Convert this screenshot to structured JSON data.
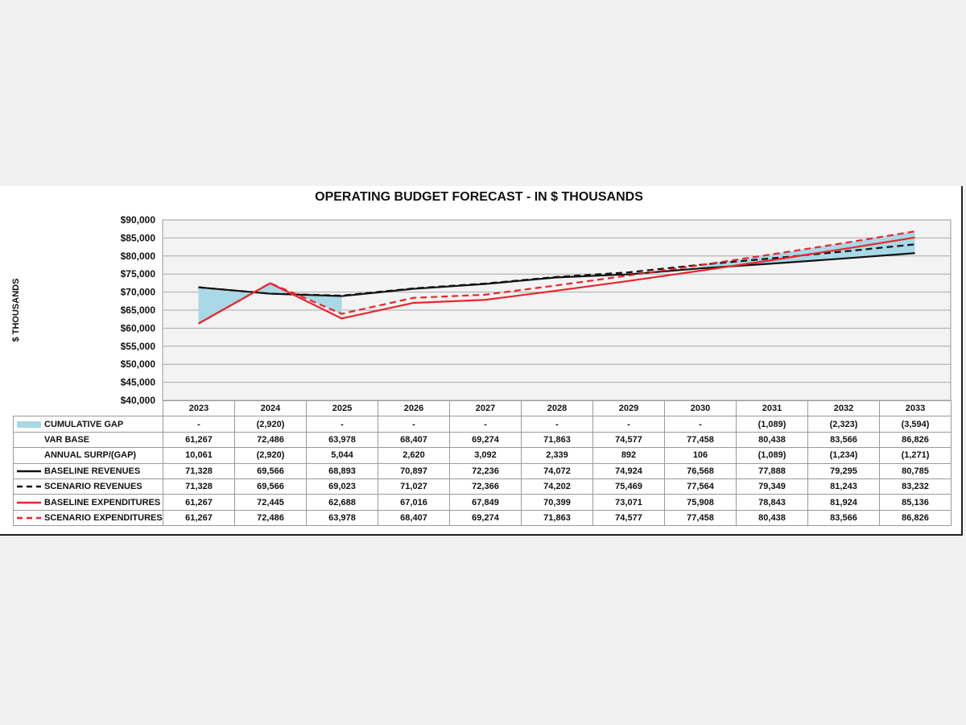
{
  "chart_data": {
    "type": "line",
    "title": "OPERATING BUDGET FORECAST - IN $ THOUSANDS",
    "ylabel": "$ THOUSANDS",
    "ylim": [
      40000,
      90000
    ],
    "yticks": [
      "$40,000",
      "$45,000",
      "$50,000",
      "$55,000",
      "$60,000",
      "$65,000",
      "$70,000",
      "$75,000",
      "$80,000",
      "$85,000",
      "$90,000"
    ],
    "years": [
      "2023",
      "2024",
      "2025",
      "2026",
      "2027",
      "2028",
      "2029",
      "2030",
      "2031",
      "2032",
      "2033"
    ],
    "grid": true,
    "series": [
      {
        "name": "BASELINE REVENUES",
        "color": "#111111",
        "style": "solid",
        "values": [
          71328,
          69566,
          68893,
          70897,
          72236,
          74072,
          74924,
          76568,
          77888,
          79295,
          80785
        ]
      },
      {
        "name": "SCENARIO REVENUES",
        "color": "#111111",
        "style": "dashed",
        "values": [
          71328,
          69566,
          69023,
          71027,
          72366,
          74202,
          75469,
          77564,
          79349,
          81243,
          83232
        ]
      },
      {
        "name": "BASELINE EXPENDITURES",
        "color": "#e8262b",
        "style": "solid",
        "values": [
          61267,
          72445,
          62688,
          67016,
          67849,
          70399,
          73071,
          75908,
          78843,
          81924,
          85136
        ]
      },
      {
        "name": "SCENARIO EXPENDITURES",
        "color": "#e8262b",
        "style": "dashed",
        "values": [
          61267,
          72486,
          63978,
          68407,
          69274,
          71863,
          74577,
          77458,
          80438,
          83566,
          86826
        ]
      }
    ],
    "gap_fill_color": "#a9d8e6",
    "table_rows": [
      {
        "label": "CUMULATIVE GAP",
        "swatch": "gap",
        "cells": [
          "-",
          "(2,920)",
          "-",
          "-",
          "-",
          "-",
          "-",
          "-",
          "(1,089)",
          "(2,323)",
          "(3,594)"
        ]
      },
      {
        "label": "VAR BASE",
        "swatch": "none",
        "cells": [
          "61,267",
          "72,486",
          "63,978",
          "68,407",
          "69,274",
          "71,863",
          "74,577",
          "77,458",
          "80,438",
          "83,566",
          "86,826"
        ]
      },
      {
        "label": "ANNUAL SURP/(GAP)",
        "swatch": "none",
        "cells": [
          "10,061",
          "(2,920)",
          "5,044",
          "2,620",
          "3,092",
          "2,339",
          "892",
          "106",
          "(1,089)",
          "(1,234)",
          "(1,271)"
        ]
      },
      {
        "label": "BASELINE REVENUES",
        "swatch": "black-solid",
        "cells": [
          "71,328",
          "69,566",
          "68,893",
          "70,897",
          "72,236",
          "74,072",
          "74,924",
          "76,568",
          "77,888",
          "79,295",
          "80,785"
        ]
      },
      {
        "label": "SCENARIO REVENUES",
        "swatch": "black-dashed",
        "cells": [
          "71,328",
          "69,566",
          "69,023",
          "71,027",
          "72,366",
          "74,202",
          "75,469",
          "77,564",
          "79,349",
          "81,243",
          "83,232"
        ]
      },
      {
        "label": "BASELINE EXPENDITURES",
        "swatch": "red-solid",
        "cells": [
          "61,267",
          "72,445",
          "62,688",
          "67,016",
          "67,849",
          "70,399",
          "73,071",
          "75,908",
          "78,843",
          "81,924",
          "85,136"
        ]
      },
      {
        "label": "SCENARIO EXPENDITURES",
        "swatch": "red-dashed",
        "cells": [
          "61,267",
          "72,486",
          "63,978",
          "68,407",
          "69,274",
          "71,863",
          "74,577",
          "77,458",
          "80,438",
          "83,566",
          "86,826"
        ]
      }
    ]
  }
}
